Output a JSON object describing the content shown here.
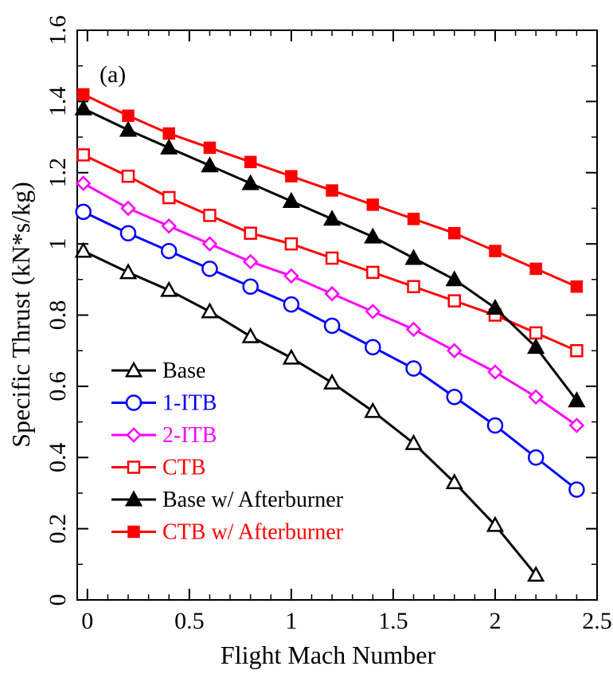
{
  "chart_data": {
    "type": "line",
    "panel_label": "(a)",
    "xlabel": "Flight Mach Number",
    "ylabel": "Specific Thrust (kN*s/kg)",
    "xlim": [
      -0.05,
      2.5
    ],
    "ylim": [
      0,
      1.6
    ],
    "xticks": [
      0,
      0.5,
      1,
      1.5,
      2,
      2.5
    ],
    "xtick_labels": [
      "0",
      "0.5",
      "1",
      "1.5",
      "2",
      "2.5"
    ],
    "yticks": [
      0,
      0.2,
      0.4,
      0.6,
      0.8,
      1,
      1.2,
      1.4,
      1.6
    ],
    "ytick_labels": [
      "0",
      "0.2",
      "0.4",
      "0.6",
      "0.8",
      "1",
      "1.2",
      "1.4",
      "1.6"
    ],
    "legend_position": "bottom-left",
    "grid": false,
    "series": [
      {
        "name": "Base",
        "color": "#000000",
        "marker": "triangle-open",
        "x": [
          -0.02,
          0.2,
          0.4,
          0.6,
          0.8,
          1.0,
          1.2,
          1.4,
          1.6,
          1.8,
          2.0,
          2.2
        ],
        "y": [
          0.98,
          0.92,
          0.87,
          0.81,
          0.74,
          0.68,
          0.61,
          0.53,
          0.44,
          0.33,
          0.21,
          0.07
        ]
      },
      {
        "name": "1-ITB",
        "color": "#0000ff",
        "marker": "circle-open",
        "x": [
          -0.02,
          0.2,
          0.4,
          0.6,
          0.8,
          1.0,
          1.2,
          1.4,
          1.6,
          1.8,
          2.0,
          2.2,
          2.4
        ],
        "y": [
          1.09,
          1.03,
          0.98,
          0.93,
          0.88,
          0.83,
          0.77,
          0.71,
          0.65,
          0.57,
          0.49,
          0.4,
          0.31
        ]
      },
      {
        "name": "2-ITB",
        "color": "#ff00ff",
        "marker": "diamond-open",
        "x": [
          -0.02,
          0.2,
          0.4,
          0.6,
          0.8,
          1.0,
          1.2,
          1.4,
          1.6,
          1.8,
          2.0,
          2.2,
          2.4
        ],
        "y": [
          1.17,
          1.1,
          1.05,
          1.0,
          0.95,
          0.91,
          0.86,
          0.81,
          0.76,
          0.7,
          0.64,
          0.57,
          0.49
        ]
      },
      {
        "name": "CTB",
        "color": "#ff0000",
        "marker": "square-open",
        "x": [
          -0.02,
          0.2,
          0.4,
          0.6,
          0.8,
          1.0,
          1.2,
          1.4,
          1.6,
          1.8,
          2.0,
          2.2,
          2.4
        ],
        "y": [
          1.25,
          1.19,
          1.13,
          1.08,
          1.03,
          1.0,
          0.96,
          0.92,
          0.88,
          0.84,
          0.8,
          0.75,
          0.7
        ]
      },
      {
        "name": "Base w/ Afterburner",
        "color": "#000000",
        "marker": "triangle-filled",
        "x": [
          -0.02,
          0.2,
          0.4,
          0.6,
          0.8,
          1.0,
          1.2,
          1.4,
          1.6,
          1.8,
          2.0,
          2.2,
          2.4
        ],
        "y": [
          1.38,
          1.32,
          1.27,
          1.22,
          1.17,
          1.12,
          1.07,
          1.02,
          0.96,
          0.9,
          0.82,
          0.71,
          0.56
        ]
      },
      {
        "name": "CTB w/ Afterburner",
        "color": "#ff0000",
        "marker": "square-filled",
        "x": [
          -0.02,
          0.2,
          0.4,
          0.6,
          0.8,
          1.0,
          1.2,
          1.4,
          1.6,
          1.8,
          2.0,
          2.2,
          2.4
        ],
        "y": [
          1.42,
          1.36,
          1.31,
          1.27,
          1.23,
          1.19,
          1.15,
          1.11,
          1.07,
          1.03,
          0.98,
          0.93,
          0.88
        ]
      }
    ]
  }
}
